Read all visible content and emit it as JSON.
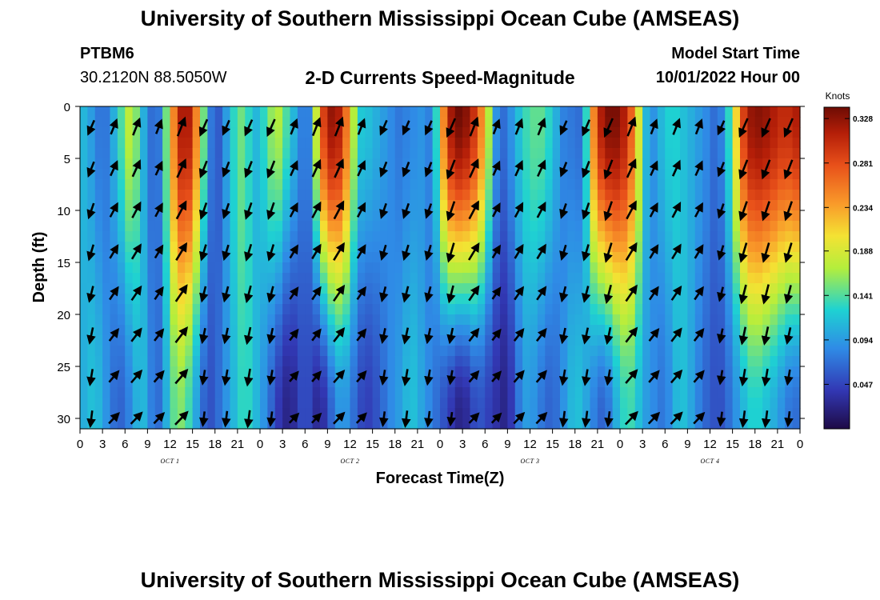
{
  "header": {
    "title": "University of Southern Mississippi Ocean Cube (AMSEAS)",
    "station": "PTBM6",
    "coords": "30.2120N  88.5050W",
    "plot_title": "2-D Currents Speed-Magnitude",
    "model_start_label": "Model Start Time",
    "model_start_value": "10/01/2022 Hour 00"
  },
  "footer": {
    "title": "University of Southern Mississippi Ocean Cube (AMSEAS)"
  },
  "chart_data": {
    "type": "heatmap",
    "title": "2-D Currents Speed-Magnitude",
    "xlabel": "Forecast Time(Z)",
    "ylabel": "Depth (ft)",
    "x_ticks": [
      "0",
      "3",
      "6",
      "9",
      "12",
      "15",
      "18",
      "21",
      "0",
      "3",
      "6",
      "9",
      "12",
      "15",
      "18",
      "21",
      "0",
      "3",
      "6",
      "9",
      "12",
      "15",
      "18",
      "21",
      "0",
      "3",
      "6",
      "9",
      "12",
      "15",
      "18",
      "21",
      "0"
    ],
    "x_range_hours": [
      0,
      96
    ],
    "day_labels": [
      {
        "label": "OCT 1",
        "hour": 12
      },
      {
        "label": "OCT 2",
        "hour": 36
      },
      {
        "label": "OCT 3",
        "hour": 60
      },
      {
        "label": "OCT 4",
        "hour": 84
      }
    ],
    "y_ticks": [
      0,
      5,
      10,
      15,
      20,
      25,
      30
    ],
    "y_range": [
      0,
      31
    ],
    "colorbar": {
      "label": "Knots",
      "ticks": [
        "0.328",
        "0.281",
        "0.234",
        "0.188",
        "0.141",
        "0.094",
        "0.047"
      ],
      "range": [
        0.0,
        0.34
      ]
    },
    "speed_by_hour_surface": [
      0.12,
      0.1,
      0.09,
      0.06,
      0.09,
      0.12,
      0.16,
      0.19,
      0.12,
      0.09,
      0.05,
      0.1,
      0.2,
      0.3,
      0.33,
      0.3,
      0.2,
      0.1,
      0.05,
      0.07,
      0.12,
      0.14,
      0.16,
      0.1,
      0.12,
      0.14,
      0.18,
      0.16,
      0.12,
      0.1,
      0.06,
      0.1,
      0.26,
      0.32,
      0.33,
      0.3,
      0.22,
      0.12,
      0.12,
      0.11,
      0.1,
      0.09,
      0.08,
      0.07,
      0.09,
      0.08,
      0.1,
      0.06,
      0.2,
      0.3,
      0.34,
      0.34,
      0.32,
      0.28,
      0.22,
      0.12,
      0.06,
      0.08,
      0.1,
      0.13,
      0.14,
      0.15,
      0.14,
      0.12,
      0.09,
      0.07,
      0.08,
      0.06,
      0.2,
      0.3,
      0.33,
      0.34,
      0.33,
      0.3,
      0.24,
      0.14,
      0.08,
      0.1,
      0.12,
      0.13,
      0.12,
      0.11,
      0.1,
      0.09,
      0.08,
      0.06,
      0.1,
      0.16,
      0.26,
      0.32,
      0.33,
      0.33,
      0.32,
      0.31,
      0.3,
      0.31,
      0.32
    ],
    "speed_by_hour_bottom": [
      0.1,
      0.11,
      0.12,
      0.1,
      0.08,
      0.06,
      0.07,
      0.09,
      0.12,
      0.1,
      0.06,
      0.08,
      0.13,
      0.16,
      0.15,
      0.12,
      0.08,
      0.05,
      0.06,
      0.08,
      0.1,
      0.12,
      0.14,
      0.12,
      0.1,
      0.08,
      0.05,
      0.03,
      0.02,
      0.04,
      0.06,
      0.04,
      0.02,
      0.05,
      0.08,
      0.1,
      0.08,
      0.06,
      0.04,
      0.05,
      0.06,
      0.08,
      0.09,
      0.1,
      0.12,
      0.11,
      0.09,
      0.08,
      0.06,
      0.05,
      0.03,
      0.02,
      0.04,
      0.06,
      0.05,
      0.04,
      0.03,
      0.02,
      0.06,
      0.09,
      0.1,
      0.08,
      0.07,
      0.06,
      0.08,
      0.1,
      0.12,
      0.11,
      0.09,
      0.07,
      0.06,
      0.09,
      0.12,
      0.14,
      0.13,
      0.1,
      0.09,
      0.08,
      0.07,
      0.1,
      0.12,
      0.11,
      0.09,
      0.07,
      0.06,
      0.05,
      0.06,
      0.08,
      0.1,
      0.12,
      0.13,
      0.12,
      0.11,
      0.1,
      0.08,
      0.07,
      0.07
    ]
  }
}
